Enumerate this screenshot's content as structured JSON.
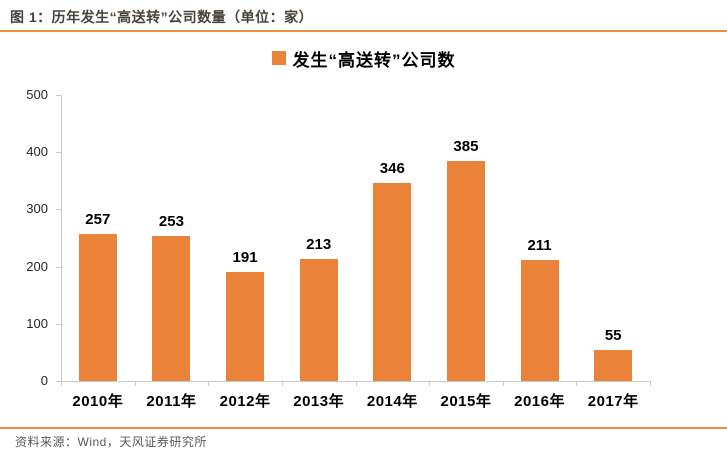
{
  "figure": {
    "title": "图 1：历年发生“高送转”公司数量（单位：家）",
    "legend_label": "发生“高送转”公司数",
    "source": "资料来源：Wind，天风证券研究所"
  },
  "colors": {
    "bar": "#EA8239",
    "accent_rule": "#E8913D",
    "title_text": "#4A423A",
    "source_text": "#595959",
    "axis_line": "#C9C9C9",
    "label_text": "#000000",
    "y_label_text": "#262626"
  },
  "chart_data": {
    "type": "bar",
    "categories": [
      "2010年",
      "2011年",
      "2012年",
      "2013年",
      "2014年",
      "2015年",
      "2016年",
      "2017年"
    ],
    "values": [
      257,
      253,
      191,
      213,
      346,
      385,
      211,
      55
    ],
    "title": "历年发生“高送转”公司数量（单位：家）",
    "xlabel": "",
    "ylabel": "",
    "ylim": [
      0,
      500
    ],
    "ytick_step": 100,
    "yticks": [
      0,
      100,
      200,
      300,
      400,
      500
    ],
    "grid": false,
    "legend": [
      "发生“高送转”公司数"
    ],
    "legend_position": "top-center",
    "data_labels": true,
    "bar_color": "#EA8239"
  }
}
